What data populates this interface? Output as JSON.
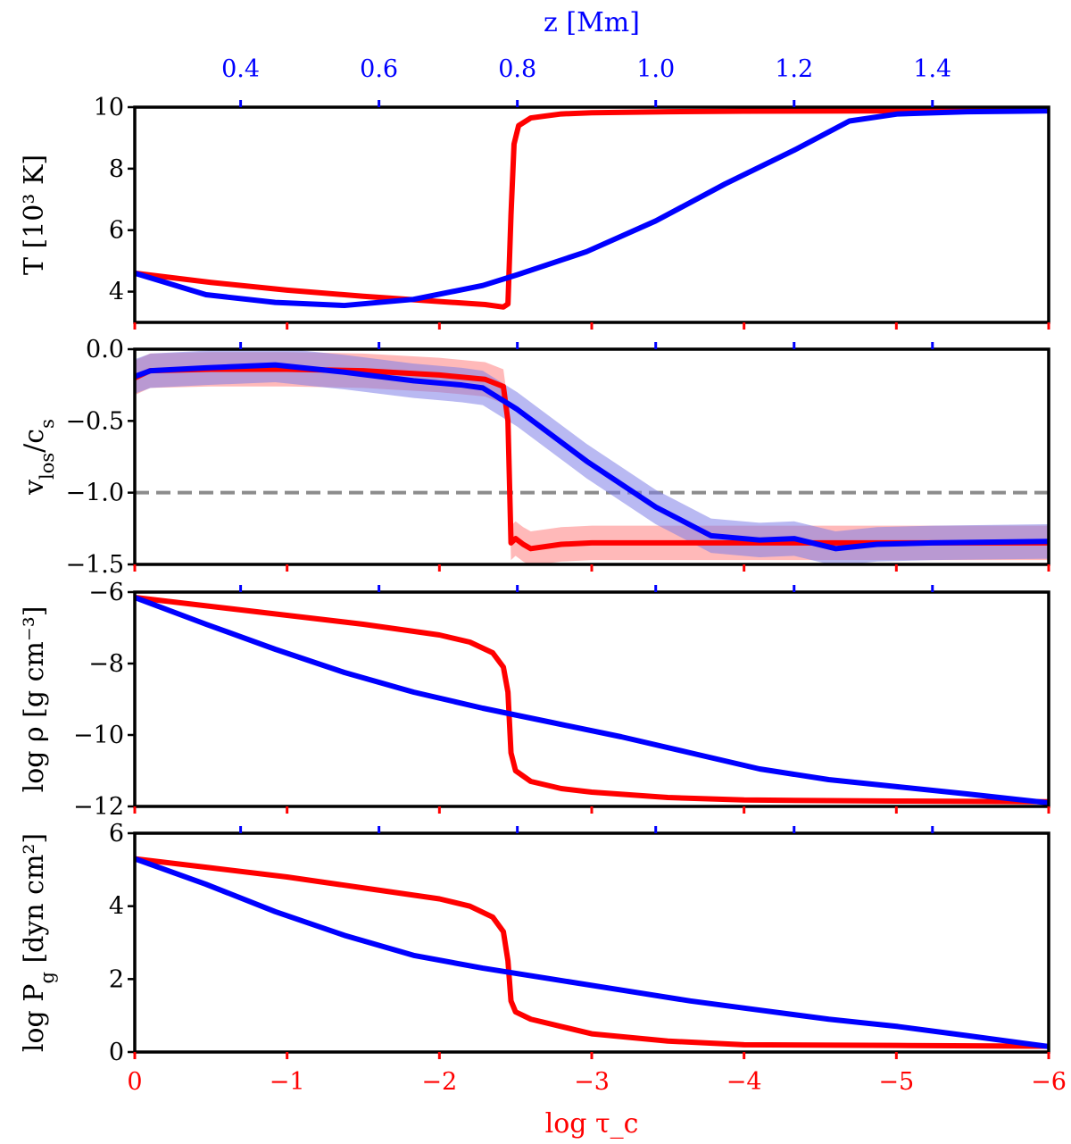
{
  "chart_data": {
    "type": "line",
    "colors": {
      "red": "#ff0000",
      "blue": "#0000ff",
      "band_red": "#ff8080",
      "band_blue": "#7f7fe8",
      "dashed": "#8c8c8c"
    },
    "x_bottom": {
      "label": "log τ_c",
      "range": [
        0,
        -6
      ],
      "ticks": [
        0,
        -1,
        -2,
        -3,
        -4,
        -5,
        -6
      ],
      "tick_labels": [
        "0",
        "−1",
        "−2",
        "−3",
        "−4",
        "−5",
        "−6"
      ],
      "color": "#ff0000"
    },
    "x_top": {
      "label": "z [Mm]",
      "range": [
        0.247,
        1.568
      ],
      "ticks": [
        0.4,
        0.6,
        0.8,
        1.0,
        1.2,
        1.4
      ],
      "tick_labels": [
        "0.4",
        "0.6",
        "0.8",
        "1.0",
        "1.2",
        "1.4"
      ],
      "color": "#0000ff"
    },
    "panels": [
      {
        "id": "temperature",
        "ylabel": "T [10³ K]",
        "ylim": [
          3,
          10
        ],
        "yticks": [
          4,
          6,
          8,
          10
        ],
        "ytick_labels": [
          "4",
          "6",
          "8",
          "10"
        ],
        "series": [
          {
            "color": "red",
            "axis": "bottom",
            "x": [
              0,
              -0.5,
              -1,
              -1.5,
              -2,
              -2.3,
              -2.42,
              -2.45,
              -2.47,
              -2.49,
              -2.52,
              -2.6,
              -2.8,
              -3,
              -3.5,
              -4,
              -5,
              -6
            ],
            "y": [
              4.6,
              4.3,
              4.05,
              3.85,
              3.68,
              3.58,
              3.5,
              3.6,
              6.5,
              8.8,
              9.4,
              9.65,
              9.78,
              9.82,
              9.85,
              9.87,
              9.88,
              9.9
            ]
          },
          {
            "color": "blue",
            "axis": "top",
            "x": [
              0.247,
              0.35,
              0.45,
              0.55,
              0.65,
              0.75,
              0.8,
              0.9,
              1.0,
              1.1,
              1.2,
              1.28,
              1.35,
              1.45,
              1.568
            ],
            "y": [
              4.6,
              3.9,
              3.65,
              3.55,
              3.75,
              4.2,
              4.55,
              5.3,
              6.3,
              7.5,
              8.6,
              9.55,
              9.78,
              9.85,
              9.88
            ]
          }
        ]
      },
      {
        "id": "velocity",
        "ylabel": "v_los/c_s",
        "ylim": [
          -1.5,
          0
        ],
        "yticks": [
          0,
          -0.5,
          -1.0,
          -1.5
        ],
        "ytick_labels": [
          "0.0",
          "−0.5",
          "−1.0",
          "−1.5"
        ],
        "reference_line": -1.0,
        "series": [
          {
            "color": "red",
            "axis": "bottom",
            "band": 0.12,
            "x": [
              0,
              -0.1,
              -0.5,
              -1,
              -1.5,
              -2,
              -2.3,
              -2.42,
              -2.45,
              -2.47,
              -2.5,
              -2.55,
              -2.6,
              -2.8,
              -3,
              -4,
              -5,
              -6
            ],
            "y": [
              -0.2,
              -0.15,
              -0.14,
              -0.14,
              -0.15,
              -0.18,
              -0.21,
              -0.26,
              -0.5,
              -1.35,
              -1.32,
              -1.36,
              -1.39,
              -1.36,
              -1.35,
              -1.35,
              -1.35,
              -1.35
            ]
          },
          {
            "color": "blue",
            "axis": "top",
            "band": 0.12,
            "x": [
              0.247,
              0.27,
              0.35,
              0.45,
              0.55,
              0.65,
              0.72,
              0.75,
              0.8,
              0.9,
              1.0,
              1.08,
              1.15,
              1.2,
              1.26,
              1.32,
              1.4,
              1.568
            ],
            "y": [
              -0.19,
              -0.15,
              -0.13,
              -0.11,
              -0.16,
              -0.22,
              -0.25,
              -0.27,
              -0.42,
              -0.78,
              -1.1,
              -1.3,
              -1.33,
              -1.32,
              -1.39,
              -1.36,
              -1.35,
              -1.34
            ]
          }
        ]
      },
      {
        "id": "density",
        "ylabel": "log ρ [g cm⁻³]",
        "ylim": [
          -12,
          -6
        ],
        "yticks": [
          -6,
          -8,
          -10,
          -12
        ],
        "ytick_labels": [
          "−6",
          "−8",
          "−10",
          "−12"
        ],
        "series": [
          {
            "color": "red",
            "axis": "bottom",
            "x": [
              0,
              -0.5,
              -1,
              -1.5,
              -2,
              -2.2,
              -2.35,
              -2.42,
              -2.45,
              -2.47,
              -2.5,
              -2.6,
              -2.8,
              -3,
              -3.5,
              -4,
              -5,
              -6
            ],
            "y": [
              -6.15,
              -6.4,
              -6.65,
              -6.9,
              -7.2,
              -7.4,
              -7.7,
              -8.1,
              -8.8,
              -10.5,
              -11.0,
              -11.3,
              -11.5,
              -11.6,
              -11.75,
              -11.82,
              -11.85,
              -11.87
            ]
          },
          {
            "color": "blue",
            "axis": "top",
            "x": [
              0.247,
              0.35,
              0.45,
              0.55,
              0.65,
              0.75,
              0.85,
              0.95,
              1.05,
              1.15,
              1.25,
              1.35,
              1.45,
              1.568
            ],
            "y": [
              -6.15,
              -6.9,
              -7.6,
              -8.25,
              -8.8,
              -9.25,
              -9.65,
              -10.05,
              -10.5,
              -10.95,
              -11.25,
              -11.45,
              -11.65,
              -11.9
            ]
          }
        ]
      },
      {
        "id": "pressure",
        "ylabel": "log P_g [dyn cm²]",
        "ylim": [
          0,
          6
        ],
        "yticks": [
          0,
          2,
          4,
          6
        ],
        "ytick_labels": [
          "0",
          "2",
          "4",
          "6"
        ],
        "series": [
          {
            "color": "red",
            "axis": "bottom",
            "x": [
              0,
              -0.5,
              -1,
              -1.5,
              -2,
              -2.2,
              -2.35,
              -2.42,
              -2.45,
              -2.47,
              -2.5,
              -2.6,
              -2.8,
              -3,
              -3.5,
              -4,
              -5,
              -6
            ],
            "y": [
              5.3,
              5.05,
              4.8,
              4.5,
              4.2,
              4.0,
              3.7,
              3.3,
              2.5,
              1.4,
              1.1,
              0.9,
              0.7,
              0.5,
              0.3,
              0.2,
              0.18,
              0.16
            ]
          },
          {
            "color": "blue",
            "axis": "top",
            "x": [
              0.247,
              0.35,
              0.45,
              0.55,
              0.65,
              0.75,
              0.85,
              0.95,
              1.05,
              1.15,
              1.25,
              1.35,
              1.45,
              1.568
            ],
            "y": [
              5.3,
              4.6,
              3.85,
              3.2,
              2.65,
              2.3,
              2.0,
              1.7,
              1.4,
              1.15,
              0.9,
              0.7,
              0.45,
              0.15
            ]
          }
        ]
      }
    ]
  }
}
